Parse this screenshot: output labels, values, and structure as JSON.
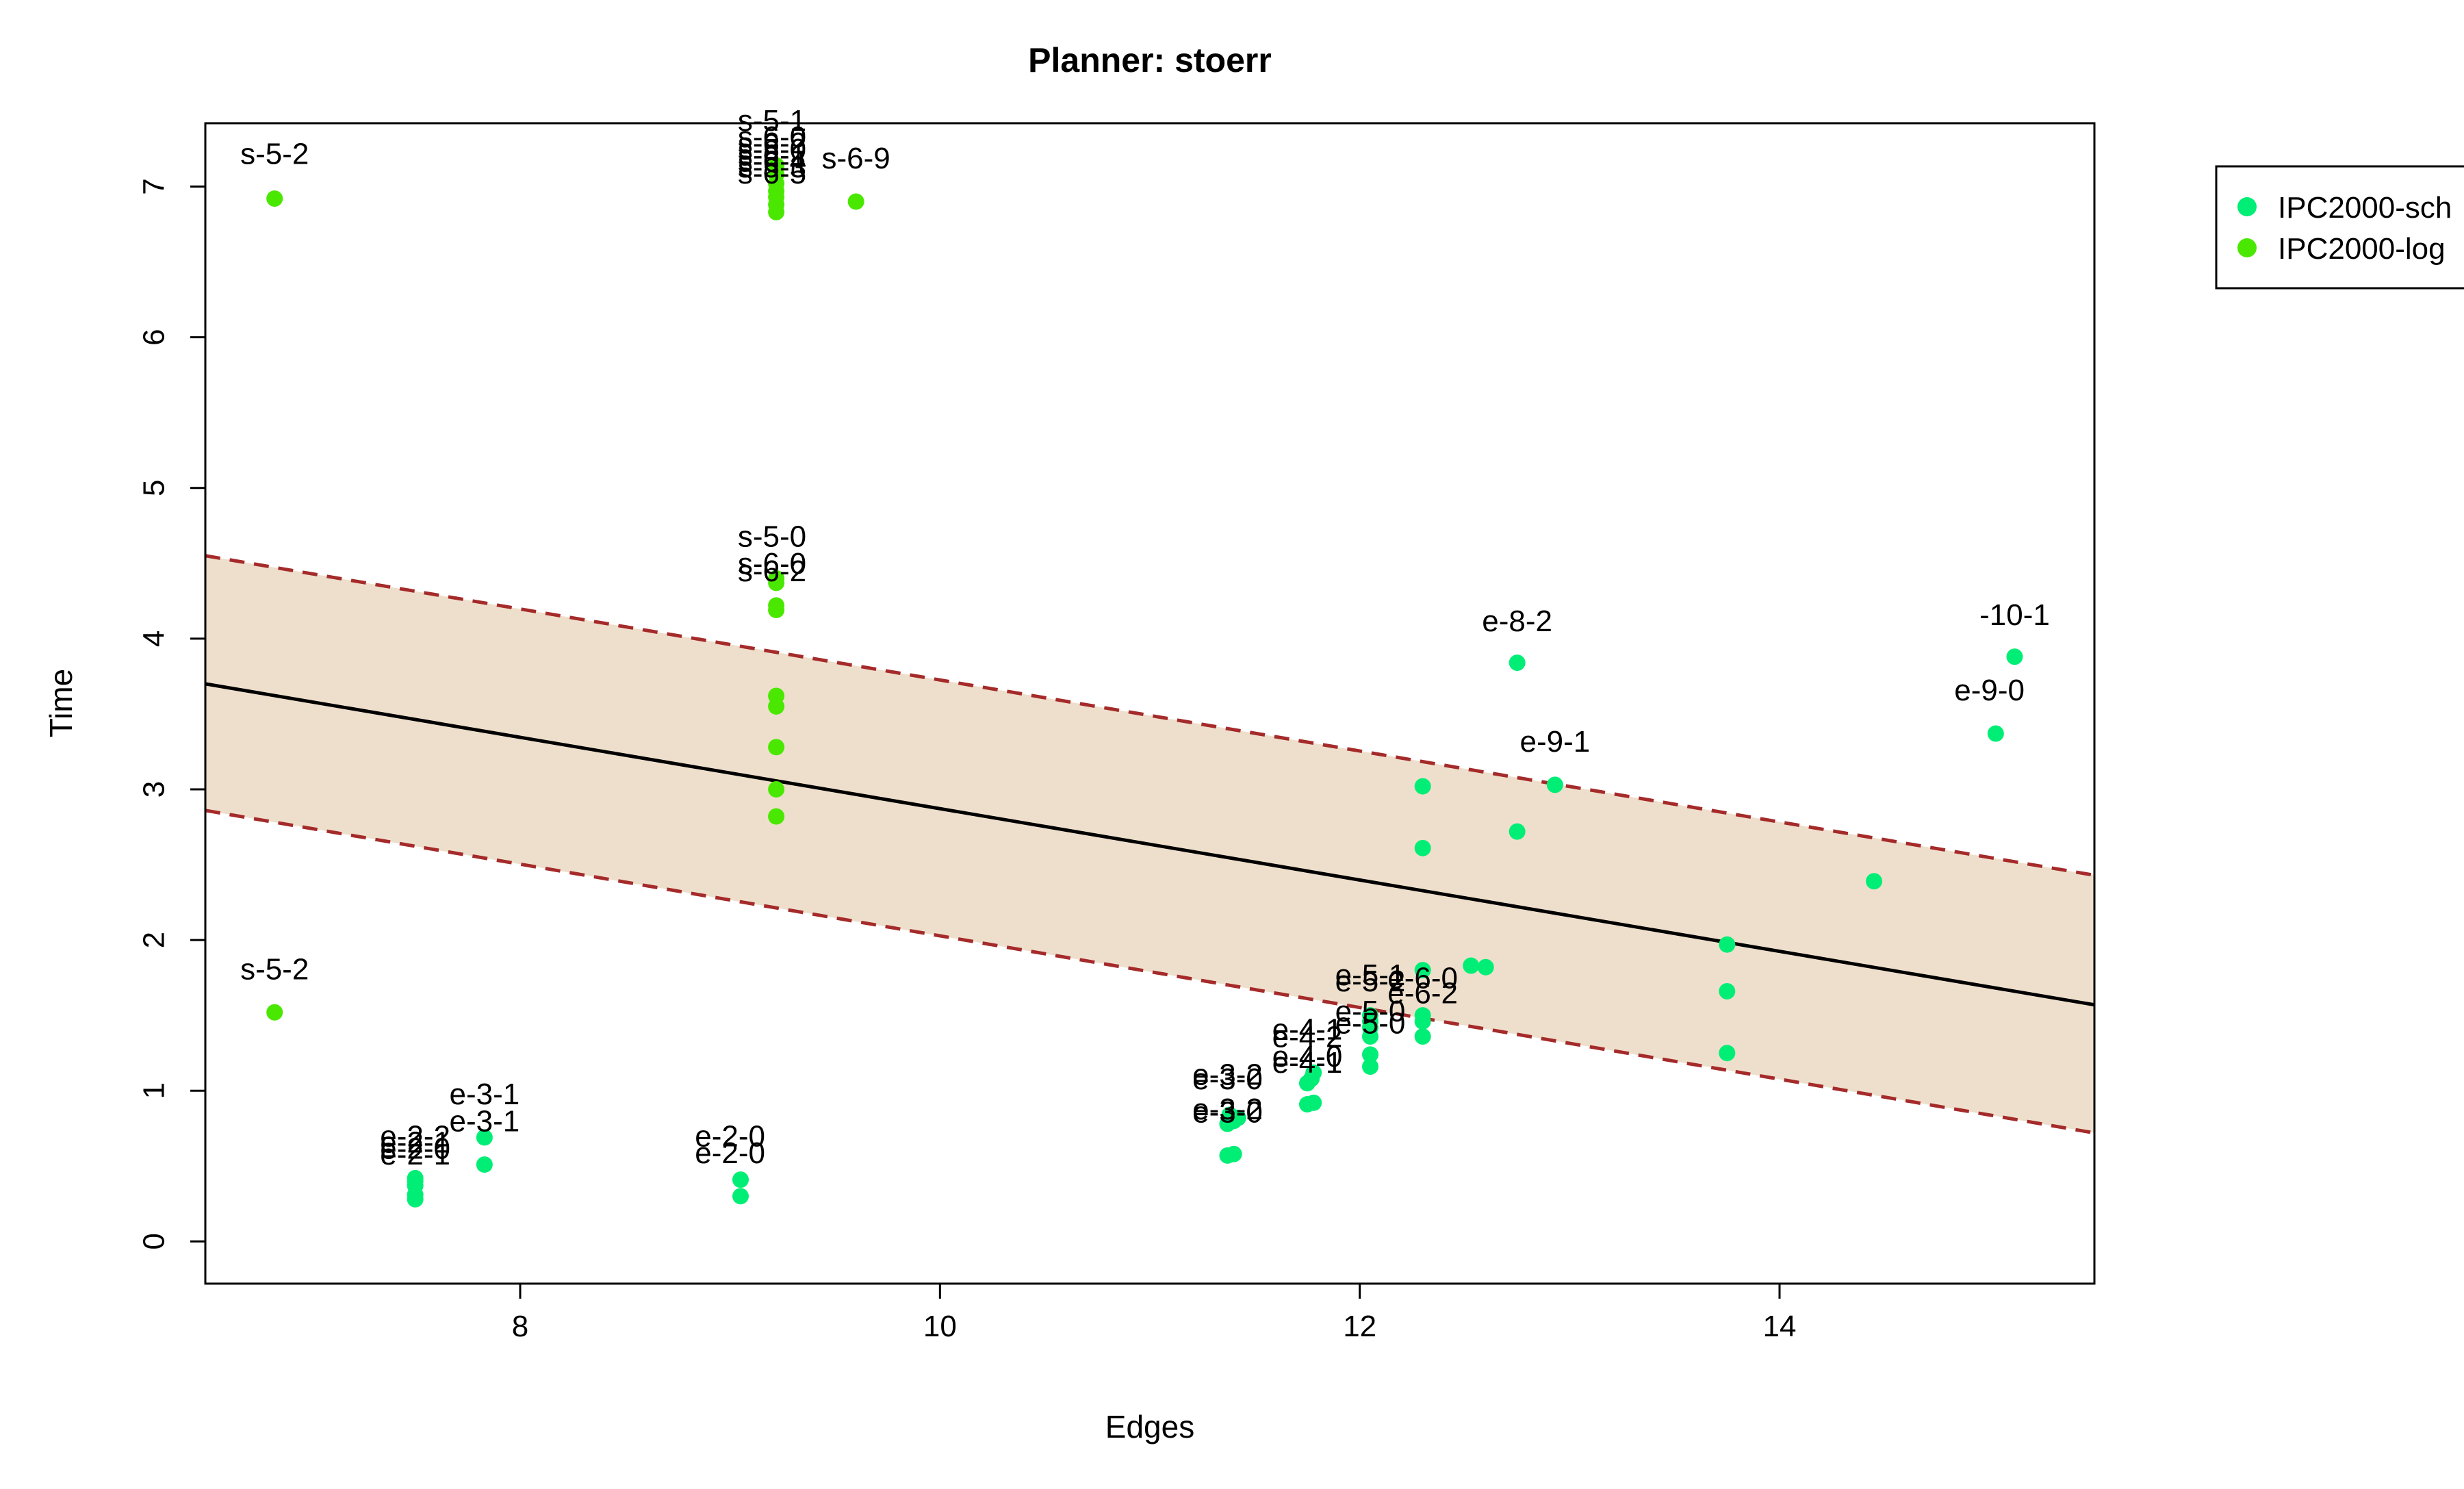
{
  "chart_data": {
    "type": "scatter",
    "title": "Planner: stoerr",
    "xlabel": "Edges",
    "ylabel": "Time",
    "xlim": [
      6.5,
      15.5
    ],
    "ylim": [
      -0.28,
      7.42
    ],
    "xticks": [
      8,
      10,
      12,
      14
    ],
    "yticks": [
      0,
      1,
      2,
      3,
      4,
      5,
      6,
      7
    ],
    "grid": false,
    "legend": {
      "placement": "top-right outside",
      "entries": [
        {
          "label": "IPC2000-sch",
          "color": "#00ee76"
        },
        {
          "label": "IPC2000-log",
          "color": "#4ae800"
        }
      ]
    },
    "regression": {
      "line": [
        [
          6.5,
          3.7
        ],
        [
          15.5,
          1.57
        ]
      ],
      "upper": [
        [
          6.5,
          4.55
        ],
        [
          15.5,
          2.43
        ]
      ],
      "lower": [
        [
          6.5,
          2.86
        ],
        [
          15.5,
          0.72
        ]
      ],
      "band_color": "#eedfcc",
      "line_color": "#000000",
      "bound_color": "#a52a2a"
    },
    "series": [
      {
        "name": "IPC2000-sch",
        "color": "#00ee76",
        "points": [
          {
            "x": 7.5,
            "y": 0.28
          },
          {
            "x": 7.5,
            "y": 0.31
          },
          {
            "x": 7.5,
            "y": 0.37
          },
          {
            "x": 7.5,
            "y": 0.4
          },
          {
            "x": 7.5,
            "y": 0.42
          },
          {
            "x": 7.83,
            "y": 0.51
          },
          {
            "x": 7.83,
            "y": 0.69
          },
          {
            "x": 9.05,
            "y": 0.3
          },
          {
            "x": 9.05,
            "y": 0.41
          },
          {
            "x": 11.37,
            "y": 0.57
          },
          {
            "x": 11.4,
            "y": 0.58
          },
          {
            "x": 11.37,
            "y": 0.78
          },
          {
            "x": 11.4,
            "y": 0.8
          },
          {
            "x": 11.42,
            "y": 0.82
          },
          {
            "x": 11.38,
            "y": 0.84
          },
          {
            "x": 11.75,
            "y": 0.91
          },
          {
            "x": 11.78,
            "y": 0.92
          },
          {
            "x": 11.75,
            "y": 1.05
          },
          {
            "x": 11.77,
            "y": 1.08
          },
          {
            "x": 11.78,
            "y": 1.12
          },
          {
            "x": 12.05,
            "y": 1.16
          },
          {
            "x": 12.05,
            "y": 1.24
          },
          {
            "x": 12.05,
            "y": 1.36
          },
          {
            "x": 12.05,
            "y": 1.42
          },
          {
            "x": 12.05,
            "y": 1.46
          },
          {
            "x": 12.05,
            "y": 1.5
          },
          {
            "x": 12.3,
            "y": 1.36
          },
          {
            "x": 12.3,
            "y": 1.46
          },
          {
            "x": 12.3,
            "y": 1.5
          },
          {
            "x": 12.3,
            "y": 1.8
          },
          {
            "x": 12.3,
            "y": 2.61
          },
          {
            "x": 12.3,
            "y": 3.02
          },
          {
            "x": 12.53,
            "y": 1.83
          },
          {
            "x": 12.6,
            "y": 1.82
          },
          {
            "x": 12.75,
            "y": 2.72
          },
          {
            "x": 12.75,
            "y": 3.84
          },
          {
            "x": 12.93,
            "y": 3.03
          },
          {
            "x": 13.75,
            "y": 1.25
          },
          {
            "x": 13.75,
            "y": 1.66
          },
          {
            "x": 13.75,
            "y": 1.97
          },
          {
            "x": 14.45,
            "y": 2.39
          },
          {
            "x": 15.03,
            "y": 3.37
          },
          {
            "x": 15.12,
            "y": 3.88
          }
        ]
      },
      {
        "name": "IPC2000-log",
        "color": "#4ae800",
        "points": [
          {
            "x": 6.83,
            "y": 6.92
          },
          {
            "x": 6.83,
            "y": 1.52
          },
          {
            "x": 9.22,
            "y": 7.14
          },
          {
            "x": 9.22,
            "y": 7.08
          },
          {
            "x": 9.22,
            "y": 7.02
          },
          {
            "x": 9.22,
            "y": 6.97
          },
          {
            "x": 9.22,
            "y": 6.93
          },
          {
            "x": 9.22,
            "y": 6.88
          },
          {
            "x": 9.22,
            "y": 6.83
          },
          {
            "x": 9.6,
            "y": 6.9
          },
          {
            "x": 9.22,
            "y": 4.4
          },
          {
            "x": 9.22,
            "y": 4.37
          },
          {
            "x": 9.22,
            "y": 4.22
          },
          {
            "x": 9.22,
            "y": 4.19
          },
          {
            "x": 9.22,
            "y": 3.62
          },
          {
            "x": 9.22,
            "y": 3.55
          },
          {
            "x": 9.22,
            "y": 3.28
          },
          {
            "x": 9.22,
            "y": 3.0
          },
          {
            "x": 9.22,
            "y": 2.82
          }
        ]
      }
    ],
    "annotations": [
      {
        "text": "s-5-2",
        "x": 6.83,
        "y": 7.15
      },
      {
        "text": "s-5-2",
        "x": 6.83,
        "y": 1.74
      },
      {
        "text": "s-5-1",
        "x": 9.2,
        "y": 7.37
      },
      {
        "text": "s-6-0",
        "x": 9.2,
        "y": 7.26
      },
      {
        "text": "s-6-2",
        "x": 9.2,
        "y": 7.22
      },
      {
        "text": "s-5-0",
        "x": 9.2,
        "y": 7.18
      },
      {
        "text": "s-6-1",
        "x": 9.2,
        "y": 7.14
      },
      {
        "text": "s-6-4",
        "x": 9.2,
        "y": 7.1
      },
      {
        "text": "s-5-3",
        "x": 9.2,
        "y": 7.06
      },
      {
        "text": "s-6-5",
        "x": 9.2,
        "y": 7.02
      },
      {
        "text": "s-6-9",
        "x": 9.6,
        "y": 7.12
      },
      {
        "text": "s-5-0",
        "x": 9.2,
        "y": 4.61
      },
      {
        "text": "s-6-0",
        "x": 9.2,
        "y": 4.43
      },
      {
        "text": "s-6-2",
        "x": 9.2,
        "y": 4.38
      },
      {
        "text": "e-8-2",
        "x": 12.75,
        "y": 4.05
      },
      {
        "text": "-10-1",
        "x": 15.12,
        "y": 4.09
      },
      {
        "text": "e-9-0",
        "x": 15.0,
        "y": 3.59
      },
      {
        "text": "e-9-1",
        "x": 12.93,
        "y": 3.25
      },
      {
        "text": "e-3-1",
        "x": 7.83,
        "y": 0.91
      },
      {
        "text": "e-3-1",
        "x": 7.83,
        "y": 0.73
      },
      {
        "text": "e-2-2",
        "x": 7.5,
        "y": 0.63
      },
      {
        "text": "e-2-1",
        "x": 7.5,
        "y": 0.59
      },
      {
        "text": "e-2-0",
        "x": 7.5,
        "y": 0.55
      },
      {
        "text": "e-2-1",
        "x": 7.5,
        "y": 0.51
      },
      {
        "text": "e-2-0",
        "x": 9.0,
        "y": 0.63
      },
      {
        "text": "e-2-0",
        "x": 9.0,
        "y": 0.52
      },
      {
        "text": "e-3-2",
        "x": 11.37,
        "y": 1.04
      },
      {
        "text": "e-3-0",
        "x": 11.37,
        "y": 1.01
      },
      {
        "text": "e-3-2",
        "x": 11.37,
        "y": 0.81
      },
      {
        "text": "e-3-0",
        "x": 11.37,
        "y": 0.79
      },
      {
        "text": "e-4-1",
        "x": 11.75,
        "y": 1.34
      },
      {
        "text": "e-4-2",
        "x": 11.75,
        "y": 1.29
      },
      {
        "text": "e-4-0",
        "x": 11.75,
        "y": 1.16
      },
      {
        "text": "e-4-1",
        "x": 11.75,
        "y": 1.12
      },
      {
        "text": "e-5-1",
        "x": 12.05,
        "y": 1.7
      },
      {
        "text": "e-5-2",
        "x": 12.05,
        "y": 1.66
      },
      {
        "text": "e-6-0",
        "x": 12.3,
        "y": 1.68
      },
      {
        "text": "e-6-2",
        "x": 12.3,
        "y": 1.58
      },
      {
        "text": "e-5-0",
        "x": 12.05,
        "y": 1.46
      },
      {
        "text": "e-5-0",
        "x": 12.05,
        "y": 1.38
      }
    ]
  }
}
